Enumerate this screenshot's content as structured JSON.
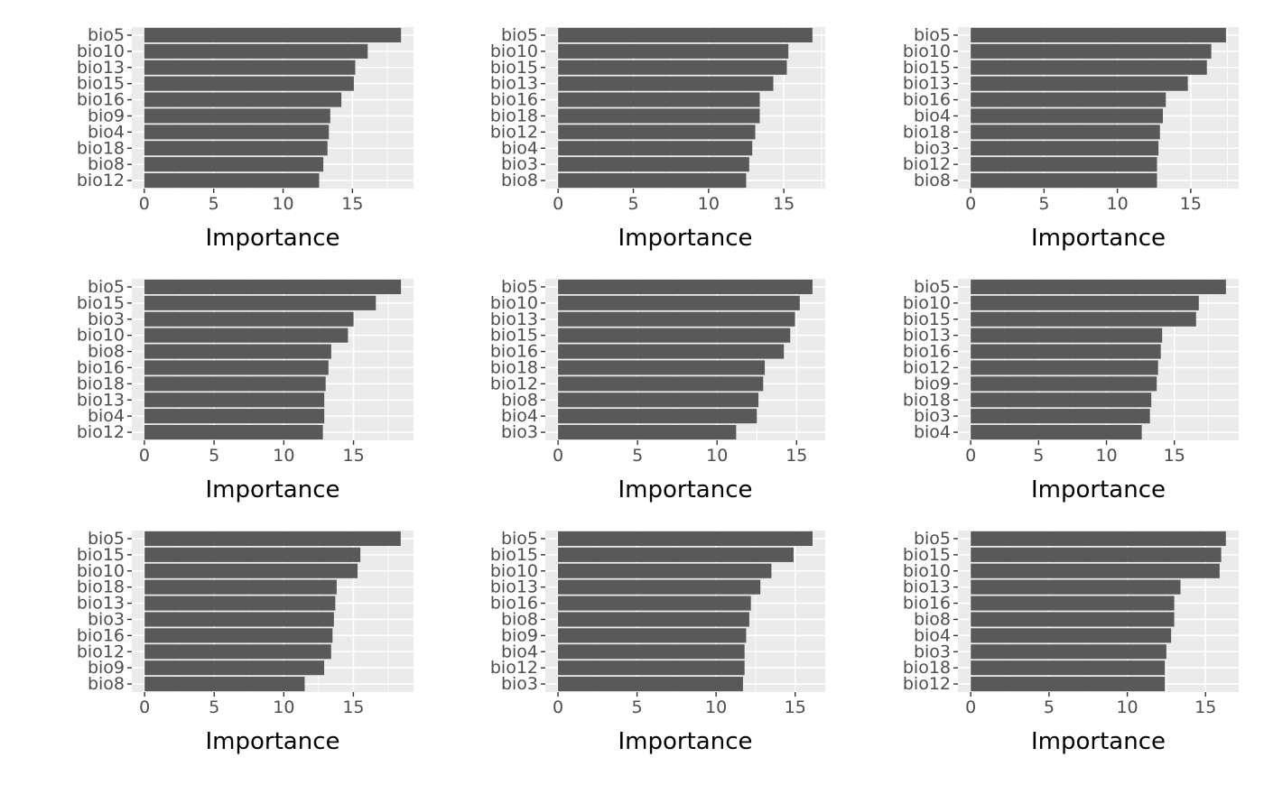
{
  "colors": {
    "background": "#ffffff",
    "panel": "#ebebeb",
    "grid": "#ffffff",
    "bar": "#595959",
    "text": "#4d4d4d",
    "title": "#000000"
  },
  "chart_data": [
    {
      "type": "bar",
      "orientation": "horizontal",
      "categories": [
        "bio5",
        "bio10",
        "bio13",
        "bio15",
        "bio16",
        "bio9",
        "bio4",
        "bio18",
        "bio8",
        "bio12"
      ],
      "values": [
        18.5,
        16.1,
        15.2,
        15.1,
        14.2,
        13.4,
        13.3,
        13.2,
        12.9,
        12.6
      ],
      "xlabel": "Importance",
      "ylabel": "",
      "xlim": [
        -0.9,
        19.4
      ],
      "xticks": [
        0,
        5,
        10,
        15
      ],
      "grid": true,
      "legend": "none"
    },
    {
      "type": "bar",
      "orientation": "horizontal",
      "categories": [
        "bio5",
        "bio10",
        "bio15",
        "bio13",
        "bio16",
        "bio18",
        "bio12",
        "bio4",
        "bio3",
        "bio8"
      ],
      "values": [
        16.9,
        15.3,
        15.2,
        14.3,
        13.4,
        13.4,
        13.1,
        12.9,
        12.7,
        12.5
      ],
      "xlabel": "Importance",
      "ylabel": "",
      "xlim": [
        -0.85,
        17.75
      ],
      "xticks": [
        0,
        5,
        10,
        15
      ],
      "grid": true,
      "legend": "none"
    },
    {
      "type": "bar",
      "orientation": "horizontal",
      "categories": [
        "bio5",
        "bio10",
        "bio15",
        "bio13",
        "bio16",
        "bio4",
        "bio18",
        "bio3",
        "bio12",
        "bio8"
      ],
      "values": [
        17.4,
        16.4,
        16.1,
        14.8,
        13.3,
        13.1,
        12.9,
        12.8,
        12.7,
        12.7
      ],
      "xlabel": "Importance",
      "ylabel": "",
      "xlim": [
        -0.87,
        18.27
      ],
      "xticks": [
        0,
        5,
        10,
        15
      ],
      "grid": true,
      "legend": "none"
    },
    {
      "type": "bar",
      "orientation": "horizontal",
      "categories": [
        "bio5",
        "bio15",
        "bio3",
        "bio10",
        "bio8",
        "bio16",
        "bio18",
        "bio13",
        "bio4",
        "bio12"
      ],
      "values": [
        18.4,
        16.6,
        15.0,
        14.6,
        13.4,
        13.2,
        13.0,
        12.9,
        12.9,
        12.8
      ],
      "xlabel": "Importance",
      "ylabel": "",
      "xlim": [
        -0.9,
        19.3
      ],
      "xticks": [
        0,
        5,
        10,
        15
      ],
      "grid": true,
      "legend": "none"
    },
    {
      "type": "bar",
      "orientation": "horizontal",
      "categories": [
        "bio5",
        "bio10",
        "bio13",
        "bio15",
        "bio16",
        "bio18",
        "bio12",
        "bio8",
        "bio4",
        "bio3"
      ],
      "values": [
        16.0,
        15.2,
        14.9,
        14.6,
        14.2,
        13.0,
        12.9,
        12.6,
        12.5,
        11.2
      ],
      "xlabel": "Importance",
      "ylabel": "",
      "xlim": [
        -0.8,
        16.8
      ],
      "xticks": [
        0,
        5,
        10,
        15
      ],
      "grid": true,
      "legend": "none"
    },
    {
      "type": "bar",
      "orientation": "horizontal",
      "categories": [
        "bio5",
        "bio10",
        "bio15",
        "bio13",
        "bio16",
        "bio12",
        "bio9",
        "bio18",
        "bio3",
        "bio4"
      ],
      "values": [
        18.8,
        16.8,
        16.6,
        14.1,
        14.0,
        13.8,
        13.7,
        13.3,
        13.2,
        12.6
      ],
      "xlabel": "Importance",
      "ylabel": "",
      "xlim": [
        -0.94,
        19.74
      ],
      "xticks": [
        0,
        5,
        10,
        15
      ],
      "grid": true,
      "legend": "none"
    },
    {
      "type": "bar",
      "orientation": "horizontal",
      "categories": [
        "bio5",
        "bio15",
        "bio10",
        "bio18",
        "bio13",
        "bio3",
        "bio16",
        "bio12",
        "bio9",
        "bio8"
      ],
      "values": [
        18.4,
        15.5,
        15.3,
        13.8,
        13.7,
        13.6,
        13.5,
        13.4,
        12.9,
        11.5
      ],
      "xlabel": "Importance",
      "ylabel": "",
      "xlim": [
        -0.92,
        19.32
      ],
      "xticks": [
        0,
        5,
        10,
        15
      ],
      "grid": true,
      "legend": "none"
    },
    {
      "type": "bar",
      "orientation": "horizontal",
      "categories": [
        "bio5",
        "bio15",
        "bio10",
        "bio13",
        "bio16",
        "bio8",
        "bio9",
        "bio4",
        "bio12",
        "bio3"
      ],
      "values": [
        16.1,
        14.9,
        13.5,
        12.8,
        12.2,
        12.1,
        11.9,
        11.8,
        11.8,
        11.7
      ],
      "xlabel": "Importance",
      "ylabel": "",
      "xlim": [
        -0.8,
        16.9
      ],
      "xticks": [
        0,
        5,
        10,
        15
      ],
      "grid": true,
      "legend": "none"
    },
    {
      "type": "bar",
      "orientation": "horizontal",
      "categories": [
        "bio5",
        "bio15",
        "bio10",
        "bio13",
        "bio16",
        "bio8",
        "bio4",
        "bio3",
        "bio18",
        "bio12"
      ],
      "values": [
        16.3,
        16.0,
        15.9,
        13.4,
        13.0,
        13.0,
        12.8,
        12.5,
        12.4,
        12.4
      ],
      "xlabel": "Importance",
      "ylabel": "",
      "xlim": [
        -0.82,
        17.12
      ],
      "xticks": [
        0,
        5,
        10,
        15
      ],
      "grid": true,
      "legend": "none"
    }
  ]
}
